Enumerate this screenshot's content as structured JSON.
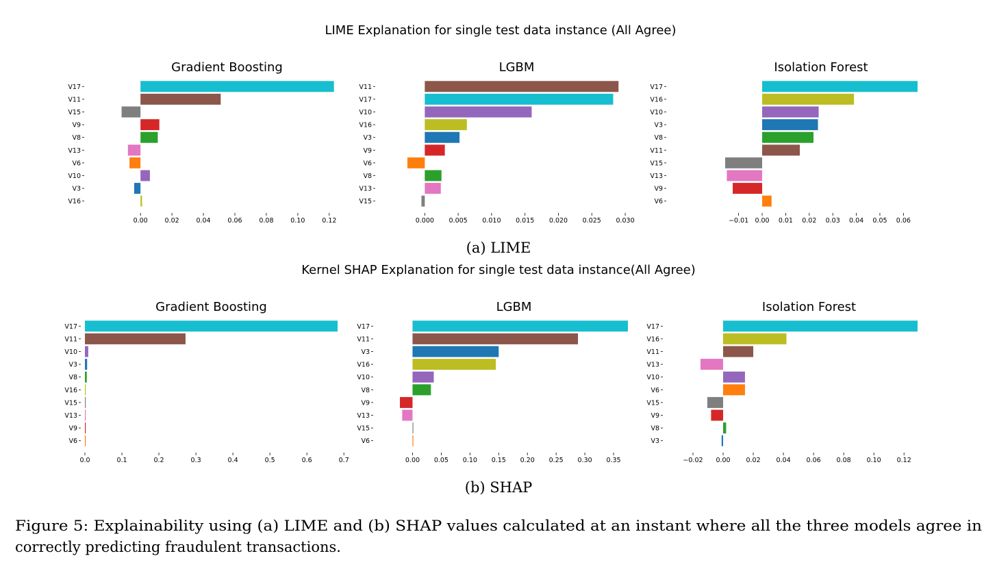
{
  "figure": {
    "lime_title": "LIME Explanation for single test data instance (All Agree)",
    "shap_title": "Kernel SHAP Explanation for single test data instance(All Agree)",
    "lime_caption": "(a) LIME",
    "shap_caption": "(b) SHAP",
    "caption_line1": "Figure 5: Explainability using (a) LIME and (b) SHAP values calculated at an instant where all the three models agree in",
    "caption_line2": "correctly predicting fraudulent transactions."
  },
  "colors": {
    "V3": "#1f77b4",
    "V6": "#ff7f0e",
    "V8": "#2ca02c",
    "V9": "#d62728",
    "V10": "#9467bd",
    "V11": "#8c564b",
    "V13": "#e377c2",
    "V15": "#7f7f7f",
    "V16": "#bcbd22",
    "V17": "#17becf"
  },
  "chart_data": [
    {
      "type": "bar",
      "orientation": "horizontal",
      "title": "Gradient Boosting",
      "group": "LIME",
      "categories": [
        "V17",
        "V11",
        "V15",
        "V9",
        "V8",
        "V13",
        "V6",
        "V10",
        "V3",
        "V16"
      ],
      "values": [
        0.123,
        0.051,
        -0.012,
        0.012,
        0.011,
        -0.008,
        -0.007,
        0.006,
        -0.004,
        0.001
      ],
      "xlim": [
        -0.014,
        0.124
      ],
      "xticks": [
        0.0,
        0.02,
        0.04,
        0.06,
        0.08,
        0.1,
        0.12
      ],
      "xtick_labels": [
        "0.00",
        "0.02",
        "0.04",
        "0.06",
        "0.08",
        "0.10",
        "0.12"
      ]
    },
    {
      "type": "bar",
      "orientation": "horizontal",
      "title": "LGBM",
      "group": "LIME",
      "categories": [
        "V11",
        "V17",
        "V10",
        "V16",
        "V3",
        "V9",
        "V6",
        "V8",
        "V13",
        "V15"
      ],
      "values": [
        0.029,
        0.0282,
        0.016,
        0.0063,
        0.0052,
        0.003,
        -0.0026,
        0.0025,
        0.0024,
        -0.0005
      ],
      "xlim": [
        -0.0027,
        0.0302
      ],
      "xticks": [
        0.0,
        0.005,
        0.01,
        0.015,
        0.02,
        0.025,
        0.03
      ],
      "xtick_labels": [
        "0.000",
        "0.005",
        "0.010",
        "0.015",
        "0.020",
        "0.025",
        "0.030"
      ]
    },
    {
      "type": "bar",
      "orientation": "horizontal",
      "title": "Isolation Forest",
      "group": "LIME",
      "categories": [
        "V17",
        "V16",
        "V10",
        "V3",
        "V8",
        "V11",
        "V15",
        "V13",
        "V9",
        "V6"
      ],
      "values": [
        0.066,
        0.039,
        0.024,
        0.0237,
        0.0218,
        0.016,
        -0.0157,
        -0.015,
        -0.0125,
        0.004
      ],
      "xlim": [
        -0.016,
        0.066
      ],
      "xticks": [
        -0.01,
        0.0,
        0.01,
        0.02,
        0.03,
        0.04,
        0.05,
        0.06
      ],
      "xtick_labels": [
        "−0.01",
        "0.00",
        "0.01",
        "0.02",
        "0.03",
        "0.04",
        "0.05",
        "0.06"
      ]
    },
    {
      "type": "bar",
      "orientation": "horizontal",
      "title": "Gradient Boosting",
      "group": "SHAP",
      "categories": [
        "V17",
        "V11",
        "V10",
        "V3",
        "V8",
        "V16",
        "V15",
        "V13",
        "V9",
        "V6"
      ],
      "values": [
        0.683,
        0.272,
        0.009,
        0.006,
        0.005,
        0.002,
        0.002,
        0.002,
        0.002,
        0.002
      ],
      "xlim": [
        0.0,
        0.683
      ],
      "xticks": [
        0.0,
        0.1,
        0.2,
        0.3,
        0.4,
        0.5,
        0.6,
        0.7
      ],
      "xtick_labels": [
        "0.0",
        "0.1",
        "0.2",
        "0.3",
        "0.4",
        "0.5",
        "0.6",
        "0.7"
      ]
    },
    {
      "type": "bar",
      "orientation": "horizontal",
      "title": "LGBM",
      "group": "SHAP",
      "categories": [
        "V17",
        "V11",
        "V3",
        "V16",
        "V10",
        "V8",
        "V9",
        "V13",
        "V15",
        "V6"
      ],
      "values": [
        0.375,
        0.288,
        0.15,
        0.145,
        0.037,
        0.032,
        -0.022,
        -0.018,
        0.001,
        0.001
      ],
      "xlim": [
        -0.022,
        0.375
      ],
      "xticks": [
        0.0,
        0.05,
        0.1,
        0.15,
        0.2,
        0.25,
        0.3,
        0.35
      ],
      "xtick_labels": [
        "0.00",
        "0.05",
        "0.10",
        "0.15",
        "0.20",
        "0.25",
        "0.30",
        "0.35"
      ]
    },
    {
      "type": "bar",
      "orientation": "horizontal",
      "title": "Isolation Forest",
      "group": "SHAP",
      "categories": [
        "V17",
        "V16",
        "V11",
        "V13",
        "V10",
        "V6",
        "V15",
        "V9",
        "V8",
        "V3"
      ],
      "values": [
        0.129,
        0.042,
        0.02,
        -0.015,
        0.0145,
        0.0145,
        -0.0105,
        -0.008,
        0.002,
        -0.001
      ],
      "xlim": [
        -0.015,
        0.129
      ],
      "xticks": [
        -0.02,
        0.0,
        0.02,
        0.04,
        0.06,
        0.08,
        0.1,
        0.12
      ],
      "xtick_labels": [
        "−0.02",
        "0.00",
        "0.02",
        "0.04",
        "0.06",
        "0.08",
        "0.10",
        "0.12"
      ]
    }
  ]
}
